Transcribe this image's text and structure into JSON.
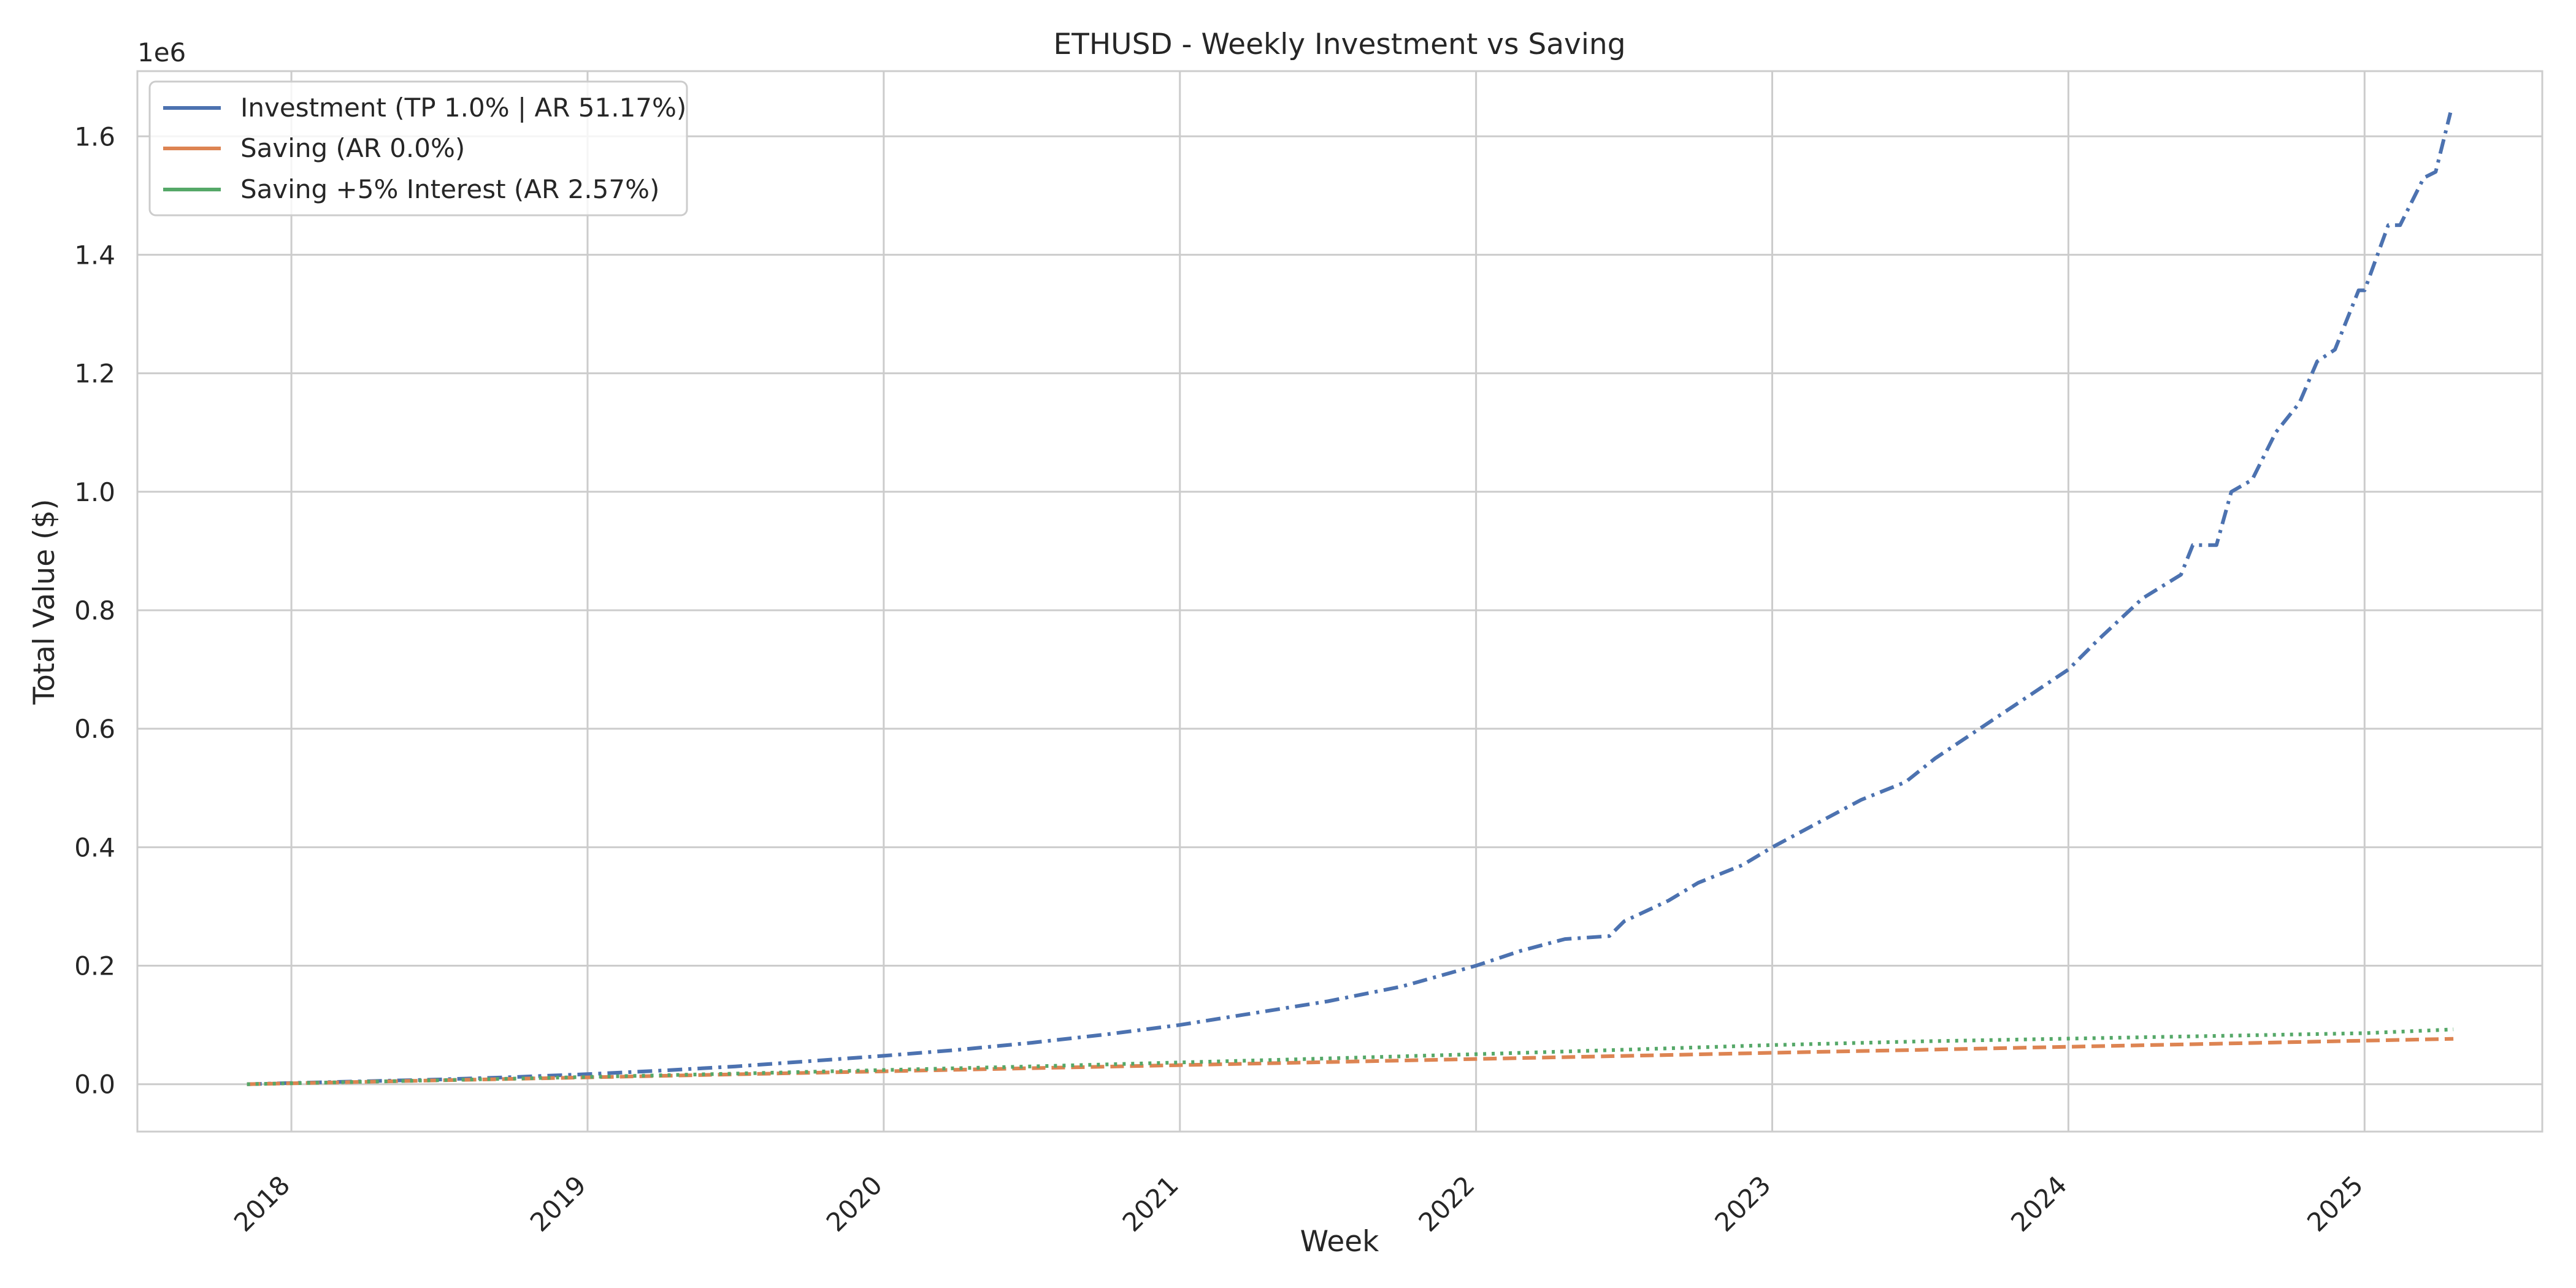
{
  "chart_data": {
    "type": "line",
    "title": "ETHUSD - Weekly Investment vs Saving",
    "xlabel": "Week",
    "ylabel": "Total Value ($)",
    "y_offset_text": "1e6",
    "xlim": [
      2017.48,
      2025.6
    ],
    "ylim": [
      -0.08,
      1.71
    ],
    "x_ticks": [
      {
        "value": 2018,
        "label": "2018"
      },
      {
        "value": 2019,
        "label": "2019"
      },
      {
        "value": 2020,
        "label": "2020"
      },
      {
        "value": 2021,
        "label": "2021"
      },
      {
        "value": 2022,
        "label": "2022"
      },
      {
        "value": 2023,
        "label": "2023"
      },
      {
        "value": 2024,
        "label": "2024"
      },
      {
        "value": 2025,
        "label": "2025"
      }
    ],
    "y_ticks": [
      {
        "value": 0.0,
        "label": "0.0"
      },
      {
        "value": 0.2,
        "label": "0.2"
      },
      {
        "value": 0.4,
        "label": "0.4"
      },
      {
        "value": 0.6,
        "label": "0.6"
      },
      {
        "value": 0.8,
        "label": "0.8"
      },
      {
        "value": 1.0,
        "label": "1.0"
      },
      {
        "value": 1.2,
        "label": "1.2"
      },
      {
        "value": 1.4,
        "label": "1.4"
      },
      {
        "value": 1.6,
        "label": "1.6"
      }
    ],
    "grid": true,
    "legend_position": "top-left",
    "series": [
      {
        "name": "Investment (TP 1.0% | AR 51.17%)",
        "color": "#4c72b0",
        "style": "dashdot",
        "x": [
          2017.85,
          2018.0,
          2018.25,
          2018.5,
          2018.75,
          2019.0,
          2019.25,
          2019.5,
          2019.75,
          2020.0,
          2020.25,
          2020.5,
          2020.75,
          2021.0,
          2021.25,
          2021.5,
          2021.75,
          2022.0,
          2022.15,
          2022.3,
          2022.45,
          2022.5,
          2022.65,
          2022.75,
          2022.9,
          2023.0,
          2023.15,
          2023.3,
          2023.45,
          2023.55,
          2023.7,
          2023.85,
          2024.0,
          2024.1,
          2024.25,
          2024.38,
          2024.42,
          2024.5,
          2024.55,
          2024.62,
          2024.7,
          2024.78,
          2024.84,
          2024.9,
          2024.98,
          2025.0,
          2025.08,
          2025.12,
          2025.2,
          2025.24,
          2025.29
        ],
        "values": [
          0.0,
          0.002,
          0.005,
          0.008,
          0.012,
          0.017,
          0.023,
          0.03,
          0.039,
          0.048,
          0.058,
          0.07,
          0.084,
          0.1,
          0.12,
          0.14,
          0.165,
          0.2,
          0.225,
          0.245,
          0.25,
          0.275,
          0.31,
          0.34,
          0.37,
          0.4,
          0.44,
          0.48,
          0.51,
          0.55,
          0.6,
          0.65,
          0.7,
          0.75,
          0.82,
          0.86,
          0.91,
          0.91,
          1.0,
          1.02,
          1.1,
          1.15,
          1.22,
          1.24,
          1.34,
          1.34,
          1.45,
          1.45,
          1.53,
          1.54,
          1.64
        ]
      },
      {
        "name": "Saving (AR 0.0%)",
        "color": "#dd8452",
        "style": "dashed",
        "x": [
          2017.85,
          2018.5,
          2019.0,
          2019.5,
          2020.0,
          2020.5,
          2021.0,
          2021.5,
          2022.0,
          2022.5,
          2023.0,
          2023.5,
          2024.0,
          2024.5,
          2025.0,
          2025.3
        ],
        "values": [
          0.0,
          0.0065,
          0.0115,
          0.0167,
          0.0218,
          0.027,
          0.0322,
          0.0374,
          0.0426,
          0.0478,
          0.053,
          0.058,
          0.0632,
          0.0684,
          0.0735,
          0.0766
        ]
      },
      {
        "name": "Saving +5% Interest (AR 2.57%)",
        "color": "#55a868",
        "style": "dotted",
        "x": [
          2017.85,
          2018.5,
          2019.0,
          2019.5,
          2020.0,
          2020.5,
          2021.0,
          2021.5,
          2022.0,
          2022.5,
          2023.0,
          2023.5,
          2024.0,
          2024.5,
          2025.0,
          2025.3
        ],
        "values": [
          0.0,
          0.0068,
          0.0122,
          0.0179,
          0.0239,
          0.0301,
          0.0367,
          0.0435,
          0.0507,
          0.0582,
          0.0661,
          0.0723,
          0.0769,
          0.0815,
          0.0862,
          0.0925
        ]
      }
    ]
  }
}
